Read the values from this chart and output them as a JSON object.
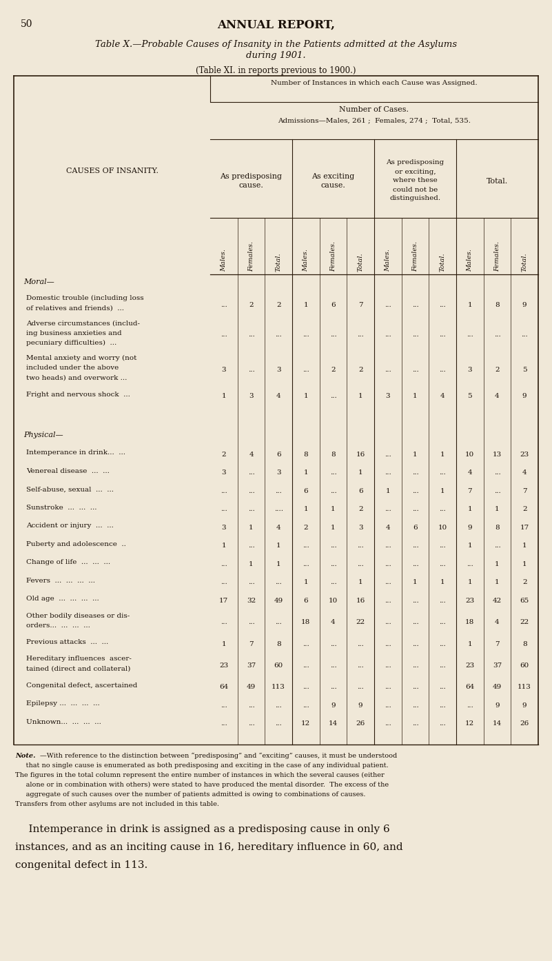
{
  "page_num": "50",
  "page_header": "ANNUAL REPORT,",
  "title_line1": "Table X.—Probable Causes of Insanity in the Patients admitted at the Asylums",
  "title_line2": "during 1901.",
  "subtitle": "(Table XI. in reports previous to 1900.)",
  "col_header_main": "Number of Instances in which each Cause was Assigned.",
  "col_header_cases": "Number of Cases.",
  "col_header_admissions": "Admissions—Males, 261 ;  Females, 274 ;  Total, 535.",
  "col_groups": [
    "As predisposing\ncause.",
    "As exciting\ncause.",
    "As predisposing\nor exciting,\nwhere these\ncould not be\ndistinguished.",
    "Total."
  ],
  "sub_cols": [
    "Males.",
    "Females.",
    "Total."
  ],
  "row_label_col": "CAUSES OF INSANITY.",
  "rows": [
    {
      "label": "Moral—",
      "cat": true,
      "vals": [
        "",
        "",
        "",
        "",
        "",
        "",
        "",
        "",
        "",
        "",
        "",
        ""
      ]
    },
    {
      "label": "Domestic trouble (including loss\nof relatives and friends)  ...",
      "cat": false,
      "vals": [
        "...",
        "2",
        "2",
        "1",
        "6",
        "7",
        "...",
        "...",
        "...",
        "1",
        "8",
        "9"
      ]
    },
    {
      "label": "Adverse circumstances (includ-\ning business anxieties and\npecuniary difficulties)  ...",
      "cat": false,
      "vals": [
        "...",
        "...",
        "...",
        "...",
        "...",
        "...",
        "...",
        "...",
        "...",
        "...",
        "...",
        "..."
      ]
    },
    {
      "label": "Mental anxiety and worry (not\nincluded under the above\ntwo heads) and overwork ...",
      "cat": false,
      "vals": [
        "3",
        "...",
        "3",
        "...",
        "2",
        "2",
        "...",
        "...",
        "...",
        "3",
        "2",
        "5"
      ]
    },
    {
      "label": "Fright and nervous shock  ...",
      "cat": false,
      "vals": [
        "1",
        "3",
        "4",
        "1",
        "...",
        "1",
        "3",
        "1",
        "4",
        "5",
        "4",
        "9"
      ]
    },
    {
      "label": "",
      "cat": false,
      "vals": [
        "",
        "",
        "",
        "",
        "",
        "",
        "",
        "",
        "",
        "",
        "",
        ""
      ],
      "spacer": true
    },
    {
      "label": "",
      "cat": false,
      "vals": [
        "",
        "",
        "",
        "",
        "",
        "",
        "",
        "",
        "",
        "",
        "",
        ""
      ],
      "spacer": true
    },
    {
      "label": "Physical—",
      "cat": true,
      "vals": [
        "",
        "",
        "",
        "",
        "",
        "",
        "",
        "",
        "",
        "",
        "",
        ""
      ]
    },
    {
      "label": "Intemperance in drink...  ...",
      "cat": false,
      "vals": [
        "2",
        "4",
        "6",
        "8",
        "8",
        "16",
        "...",
        "1",
        "1",
        "10",
        "13",
        "23"
      ]
    },
    {
      "label": "Venereal disease  ...  ...",
      "cat": false,
      "vals": [
        "3",
        "...",
        "3",
        "1",
        "...",
        "1",
        "...",
        "...",
        "...",
        "4",
        "...",
        "4"
      ]
    },
    {
      "label": "Self-abuse, sexual  ...  ...",
      "cat": false,
      "vals": [
        "...",
        "...",
        "...",
        "6",
        "...",
        "6",
        "1",
        "...",
        "1",
        "7",
        "...",
        "7"
      ]
    },
    {
      "label": "Sunstroke  ...  ...  ...",
      "cat": false,
      "vals": [
        "...",
        "...",
        "....",
        "1",
        "1",
        "2",
        "...",
        "...",
        "...",
        "1",
        "1",
        "2"
      ]
    },
    {
      "label": "Accident or injury  ...  ...",
      "cat": false,
      "vals": [
        "3",
        "1",
        "4",
        "2",
        "1",
        "3",
        "4",
        "6",
        "10",
        "9",
        "8",
        "17"
      ]
    },
    {
      "label": "Puberty and adolescence  ..",
      "cat": false,
      "vals": [
        "1",
        "...",
        "1",
        "...",
        "...",
        "...",
        "...",
        "...",
        "...",
        "1",
        "...",
        "1"
      ]
    },
    {
      "label": "Change of life  ...  ...  ...",
      "cat": false,
      "vals": [
        "...",
        "1",
        "1",
        "...",
        "...",
        "...",
        "...",
        "...",
        "...",
        "...",
        "1",
        "1"
      ]
    },
    {
      "label": "Fevers  ...  ...  ...  ...",
      "cat": false,
      "vals": [
        "...",
        "...",
        "...",
        "1",
        "...",
        "1",
        "...",
        "1",
        "1",
        "1",
        "1",
        "2"
      ]
    },
    {
      "label": "Old age  ...  ...  ...  ...",
      "cat": false,
      "vals": [
        "17",
        "32",
        "49",
        "6",
        "10",
        "16",
        "...",
        "...",
        "...",
        "23",
        "42",
        "65"
      ]
    },
    {
      "label": "Other bodily diseases or dis-\norders...  ...  ...  ...",
      "cat": false,
      "vals": [
        "...",
        "...",
        "...",
        "18",
        "4",
        "22",
        "...",
        "...",
        "...",
        "18",
        "4",
        "22"
      ]
    },
    {
      "label": "Previous attacks  ...  ...",
      "cat": false,
      "vals": [
        "1",
        "7",
        "8",
        "...",
        "...",
        "...",
        "...",
        "...",
        "...",
        "1",
        "7",
        "8"
      ]
    },
    {
      "label": "Hereditary influences  ascer-\ntained (direct and collateral)",
      "cat": false,
      "vals": [
        "23",
        "37",
        "60",
        "...",
        "...",
        "...",
        "...",
        "...",
        "...",
        "23",
        "37",
        "60"
      ]
    },
    {
      "label": "Congenital defect, ascertained",
      "cat": false,
      "vals": [
        "64",
        "49",
        "113",
        "...",
        "...",
        "...",
        "...",
        "...",
        "...",
        "64",
        "49",
        "113"
      ]
    },
    {
      "label": "Epilepsy ...  ...  ...  ...",
      "cat": false,
      "vals": [
        "...",
        "...",
        "...",
        "...",
        "9",
        "9",
        "...",
        "...",
        "...",
        "...",
        "9",
        "9"
      ]
    },
    {
      "label": "Unknown...  ...  ...  ...",
      "cat": false,
      "vals": [
        "...",
        "...",
        "...",
        "12",
        "14",
        "26",
        "...",
        "...",
        "...",
        "12",
        "14",
        "26"
      ]
    },
    {
      "label": "",
      "cat": false,
      "vals": [
        "",
        "",
        "",
        "",
        "",
        "",
        "",
        "",
        "",
        "",
        "",
        ""
      ],
      "spacer": true
    }
  ],
  "note_text": [
    [
      "Note.",
      "—With reference to the distinction between “predisposing” and “exciting” causes, it must be understood"
    ],
    [
      "",
      "that no single cause is enumerated as both predisposing and exciting in the case of any individual patient."
    ],
    [
      "The figures in the total column represent the entire number of instances in which the several causes (either",
      ""
    ],
    [
      "alone or in combination with others) were stated to have produced the mental disorder.  The excess of the",
      ""
    ],
    [
      "aggregate of such causes over the number of patients admitted is owing to combinations of causes.",
      ""
    ],
    [
      "Transfers from other asylums are not included in this table.",
      ""
    ]
  ],
  "bottom_text": [
    "    Intemperance in drink is assigned as a predisposing cause in only 6",
    "instances, and as an inciting cause in 16, hereditary influence in 60, and",
    "congenital defect in 113."
  ],
  "bg_color": "#f0e8d8",
  "text_color": "#1a1008",
  "line_color": "#2a1a0a"
}
